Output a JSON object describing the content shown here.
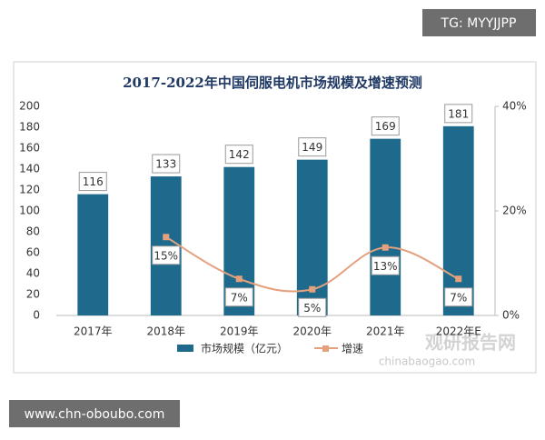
{
  "overlay": {
    "tag": "TG: MYYJJPP",
    "url": "www.chn-oboubo.com",
    "watermark": "观研报告网",
    "watermark_sub": "chinabaogao.com"
  },
  "chart_data": {
    "type": "combo",
    "title": "2017-2022年中国伺服电机市场规模及增速预测",
    "categories": [
      "2017年",
      "2018年",
      "2019年",
      "2020年",
      "2021年",
      "2022年E"
    ],
    "series": [
      {
        "name": "市场规模（亿元）",
        "type": "bar",
        "color": "#1d6a8c",
        "values": [
          116,
          133,
          142,
          149,
          169,
          181
        ]
      },
      {
        "name": "增速",
        "type": "line",
        "axis": "y2",
        "color": "#e5a07e",
        "values": [
          null,
          15,
          7,
          5,
          13,
          7
        ],
        "value_labels": [
          null,
          "15%",
          "7%",
          "5%",
          "13%",
          "7%"
        ]
      }
    ],
    "ylim": [
      0,
      200
    ],
    "yticks": [
      0,
      20,
      40,
      60,
      80,
      100,
      120,
      140,
      160,
      180,
      200
    ],
    "y2lim": [
      0,
      40
    ],
    "y2ticks": [
      {
        "value": 0,
        "label": "0%"
      },
      {
        "value": 20,
        "label": "20%"
      },
      {
        "value": 40,
        "label": "40%"
      }
    ],
    "grid": false,
    "legend": "bottom"
  }
}
